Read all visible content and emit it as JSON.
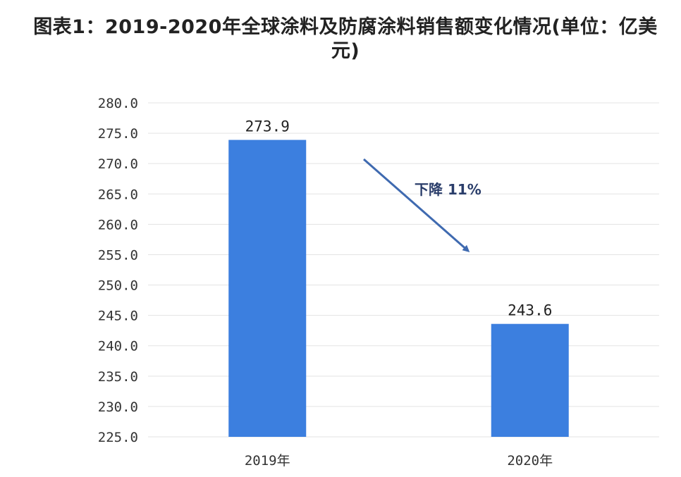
{
  "chart_data": {
    "type": "bar",
    "title": "图表1：2019-2020年全球涂料及防腐涂料销售额变化情况(单位：亿美元)",
    "categories": [
      "2019年",
      "2020年"
    ],
    "values": [
      273.9,
      243.6
    ],
    "value_labels": [
      "273.9",
      "243.6"
    ],
    "ylim": [
      225,
      280
    ],
    "yticks": [
      280,
      275,
      270,
      265,
      260,
      255,
      250,
      245,
      240,
      235,
      230,
      225
    ],
    "ytick_labels": [
      "280.0",
      "275.0",
      "270.0",
      "265.0",
      "260.0",
      "255.0",
      "250.0",
      "245.0",
      "240.0",
      "235.0",
      "230.0",
      "225.0"
    ],
    "xlabel": "",
    "ylabel": "",
    "grid": true,
    "annotation": "下降 11%",
    "bar_color": "#3c7fdf",
    "grid_color": "#e3e3e3",
    "arrow_color": "#3f6ab0"
  }
}
